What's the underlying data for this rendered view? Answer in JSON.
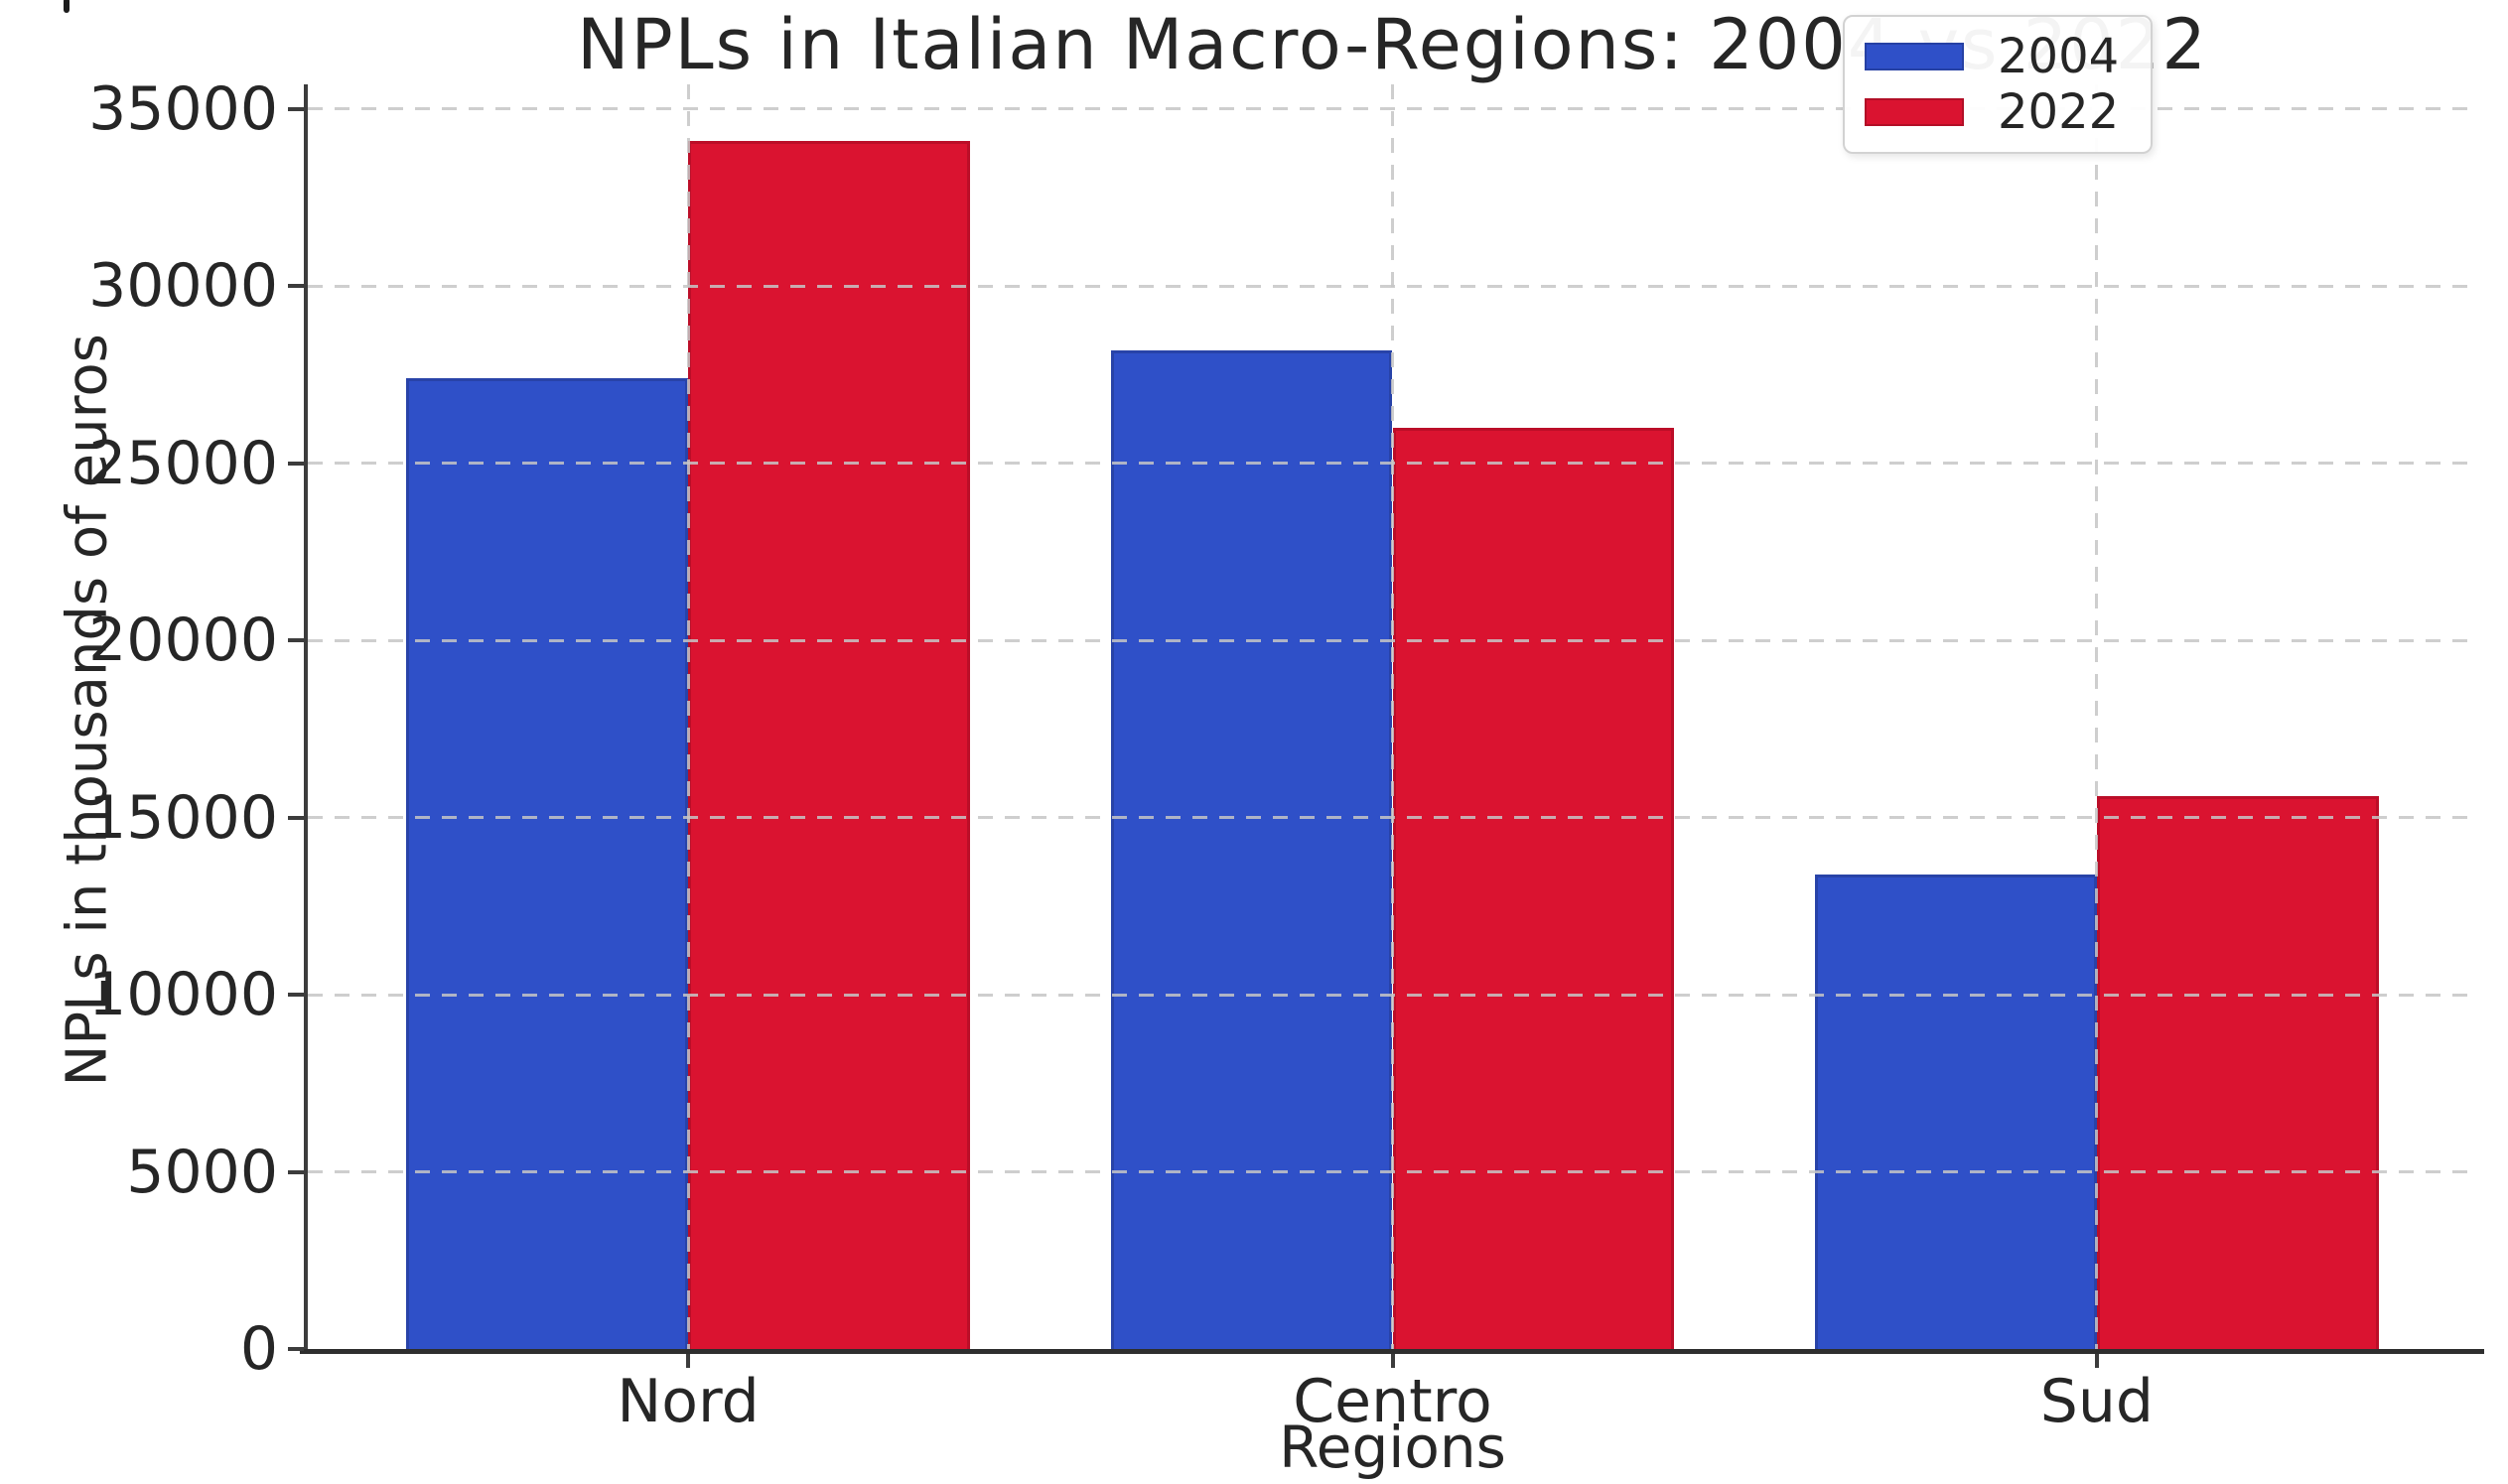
{
  "figure": {
    "background": "#ffffff",
    "text_color": "#262626",
    "spine_color": "#3c3c3c",
    "grid_color": "#c6c6c6"
  },
  "chart_data": {
    "type": "bar",
    "title": "NPLs in Italian Macro-Regions: 2004 vs 2022",
    "xlabel": "Regions",
    "ylabel": "NPLs in thousands of euros",
    "categories": [
      "Nord",
      "Centro",
      "Sud"
    ],
    "series": [
      {
        "name": "2004",
        "color": "#2F50C8",
        "edge_color": "#2843A8",
        "values": [
          27400,
          28200,
          13400
        ]
      },
      {
        "name": "2022",
        "color": "#DA1330",
        "edge_color": "#BB0E28",
        "values": [
          34100,
          26000,
          15600
        ]
      }
    ],
    "ylim": [
      0,
      35700
    ],
    "yticks": [
      0,
      5000,
      10000,
      15000,
      20000,
      25000,
      30000,
      35000
    ],
    "xlim_units": [
      -0.54,
      2.54
    ],
    "bar_width_units": 0.4,
    "grid": "dashed, horizontal and vertical at category centers",
    "legend_position": "upper right"
  }
}
